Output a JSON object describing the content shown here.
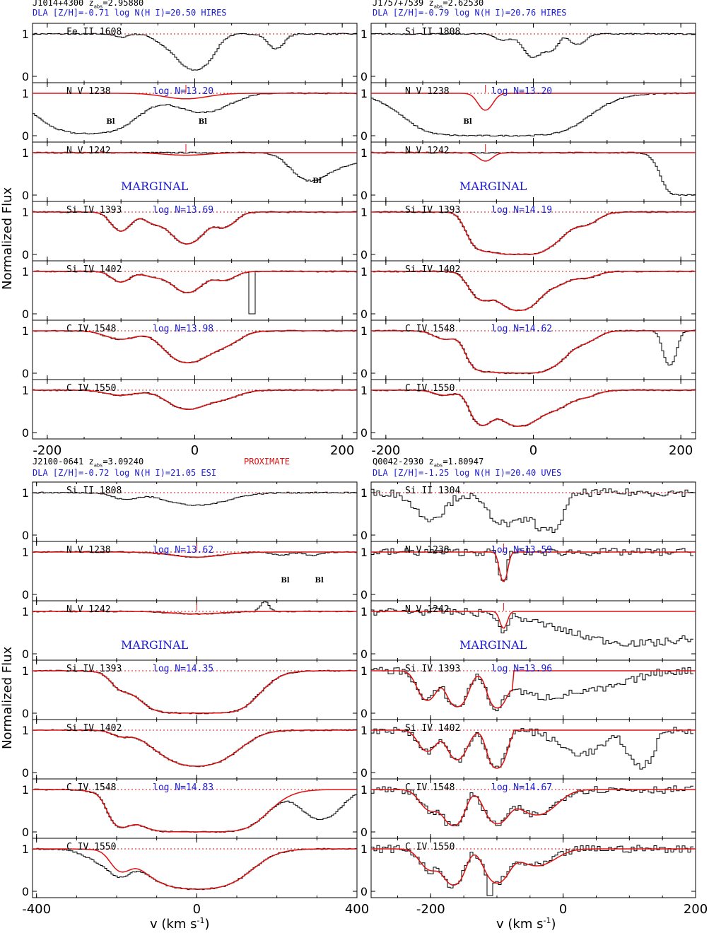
{
  "y_axis_label": "Normalized Flux",
  "x_axis_label": "v (km s",
  "x_axis_label_exponent": "-1",
  "x_axis_label_close": ")",
  "colors": {
    "data": "#000000",
    "model": "#e01010",
    "blue_text": "#1a1ad6",
    "continuum": "#e01010"
  },
  "chart_data": [
    {
      "type": "line",
      "header": {
        "name": "J1014+4300",
        "z_prefix": "z",
        "z_sub": "abs",
        "z_value": "=2.95880",
        "info": "DLA [Z/H]=-0.71 log N(H I)=20.50 HIRES",
        "flag": ""
      },
      "xlim": [
        -220,
        220
      ],
      "ylim": [
        -0.15,
        1.25
      ],
      "xticks": [
        -200,
        0,
        200
      ],
      "yticks": [
        0,
        1
      ],
      "panels": [
        {
          "ion": "Fe II 1608",
          "logN": "",
          "marginal": false,
          "model": false,
          "lines": [
            {
              "v": 0,
              "d": 0.85,
              "w": 18
            },
            {
              "v": -40,
              "d": 0.2,
              "w": 14
            },
            {
              "v": 110,
              "d": 0.35,
              "w": 10
            },
            {
              "v": -100,
              "d": 0.08,
              "w": 8
            }
          ]
        },
        {
          "ion": "N V 1238",
          "logN": "log N=13.20",
          "marginal": false,
          "model": true,
          "model_v": -12,
          "model_d": 0.13,
          "model_w": 28,
          "lines": [
            {
              "v": -145,
              "d": 0.95,
              "w": 42
            },
            {
              "v": 10,
              "d": 0.45,
              "w": 32
            }
          ],
          "blends": [
            {
              "v": -120,
              "label": "Bl"
            },
            {
              "v": 5,
              "label": "Bl"
            }
          ]
        },
        {
          "ion": "N V 1242",
          "logN": "",
          "marginal": true,
          "marginal_label": "MARGINAL",
          "model": true,
          "model_v": -12,
          "model_d": 0.06,
          "model_w": 28,
          "lines": [
            {
              "v": 155,
              "d": 0.62,
              "w": 20
            },
            {
              "v": 200,
              "d": 0.3,
              "w": 30
            }
          ],
          "blends": [
            {
              "v": 160,
              "label": "Bl"
            }
          ]
        },
        {
          "ion": "Si IV 1393",
          "logN": "log N=13.69",
          "marginal": false,
          "model": true,
          "lines": [
            {
              "v": -100,
              "d": 0.45,
              "w": 12
            },
            {
              "v": -10,
              "d": 0.75,
              "w": 18
            },
            {
              "v": 40,
              "d": 0.35,
              "w": 14
            },
            {
              "v": -55,
              "d": 0.25,
              "w": 14
            }
          ]
        },
        {
          "ion": "Si IV 1402",
          "logN": "",
          "marginal": false,
          "model": true,
          "lines": [
            {
              "v": -100,
              "d": 0.25,
              "w": 12
            },
            {
              "v": -10,
              "d": 0.5,
              "w": 18
            },
            {
              "v": 40,
              "d": 0.2,
              "w": 14
            },
            {
              "v": -55,
              "d": 0.12,
              "w": 14
            }
          ],
          "spike": {
            "v": 78,
            "d": 1.0
          }
        },
        {
          "ion": "C IV 1548",
          "logN": "log N=13.98",
          "marginal": false,
          "model": true,
          "lines": [
            {
              "v": -10,
              "d": 0.75,
              "w": 24
            },
            {
              "v": 40,
              "d": 0.3,
              "w": 20
            },
            {
              "v": -100,
              "d": 0.2,
              "w": 20
            }
          ]
        },
        {
          "ion": "C IV 1550",
          "logN": "",
          "marginal": false,
          "model": true,
          "lines": [
            {
              "v": -10,
              "d": 0.45,
              "w": 24
            },
            {
              "v": 40,
              "d": 0.18,
              "w": 20
            },
            {
              "v": -100,
              "d": 0.12,
              "w": 20
            }
          ]
        }
      ]
    },
    {
      "type": "line",
      "header": {
        "name": "J1757+7539",
        "z_prefix": "z",
        "z_sub": "abs",
        "z_value": "=2.62530",
        "info": "DLA [Z/H]=-0.79 log N(H I)=20.76 HIRES",
        "flag": ""
      },
      "xlim": [
        -220,
        220
      ],
      "ylim": [
        -0.15,
        1.25
      ],
      "xticks": [
        -200,
        0,
        200
      ],
      "yticks": [
        0,
        1
      ],
      "panels": [
        {
          "ion": "Si II 1808",
          "logN": "",
          "marginal": false,
          "model": false,
          "lines": [
            {
              "v": 0,
              "d": 0.55,
              "w": 12
            },
            {
              "v": 25,
              "d": 0.35,
              "w": 8
            },
            {
              "v": 60,
              "d": 0.25,
              "w": 10
            },
            {
              "v": -40,
              "d": 0.15,
              "w": 10
            }
          ]
        },
        {
          "ion": "N V 1238",
          "logN": "log N=13.20",
          "marginal": false,
          "model": true,
          "model_v": -65,
          "model_d": 0.4,
          "model_w": 9,
          "lines": [
            {
              "v": -50,
              "d": 1.0,
              "w": 60
            },
            {
              "v": -120,
              "d": 0.3,
              "w": 30
            }
          ],
          "blends": [
            {
              "v": -95,
              "label": "Bl"
            }
          ]
        },
        {
          "ion": "N V 1242",
          "logN": "",
          "marginal": true,
          "marginal_label": "MARGINAL",
          "model": true,
          "model_v": -65,
          "model_d": 0.2,
          "model_w": 9,
          "lines": [
            {
              "v": 210,
              "d": 1.0,
              "w": 18
            }
          ]
        },
        {
          "ion": "Si IV 1393",
          "logN": "log N=14.19",
          "marginal": false,
          "model": true,
          "lines": [
            {
              "v": -70,
              "d": 0.85,
              "w": 14
            },
            {
              "v": -20,
              "d": 1.0,
              "w": 22
            },
            {
              "v": 30,
              "d": 0.55,
              "w": 16
            },
            {
              "v": 70,
              "d": 0.3,
              "w": 16
            }
          ]
        },
        {
          "ion": "Si IV 1402",
          "logN": "",
          "marginal": false,
          "model": true,
          "lines": [
            {
              "v": -70,
              "d": 0.65,
              "w": 14
            },
            {
              "v": -20,
              "d": 0.92,
              "w": 20
            },
            {
              "v": 30,
              "d": 0.3,
              "w": 16
            },
            {
              "v": 70,
              "d": 0.15,
              "w": 16
            }
          ]
        },
        {
          "ion": "C IV 1548",
          "logN": "log N=14.62",
          "marginal": false,
          "model": true,
          "lines": [
            {
              "v": -70,
              "d": 0.9,
              "w": 14
            },
            {
              "v": -20,
              "d": 1.0,
              "w": 24
            },
            {
              "v": 30,
              "d": 0.6,
              "w": 18
            },
            {
              "v": 70,
              "d": 0.25,
              "w": 16
            },
            {
              "v": -120,
              "d": 0.2,
              "w": 14
            }
          ],
          "extra": [
            {
              "v": 185,
              "d": 0.8,
              "w": 7
            }
          ]
        },
        {
          "ion": "C IV 1550",
          "logN": "",
          "marginal": false,
          "model": true,
          "lines": [
            {
              "v": -70,
              "d": 0.8,
              "w": 12
            },
            {
              "v": -20,
              "d": 0.85,
              "w": 22
            },
            {
              "v": 30,
              "d": 0.4,
              "w": 18
            },
            {
              "v": 70,
              "d": 0.15,
              "w": 16
            },
            {
              "v": -120,
              "d": 0.12,
              "w": 14
            }
          ]
        }
      ]
    },
    {
      "type": "line",
      "header": {
        "name": "J2100-0641",
        "z_prefix": "z",
        "z_sub": "abs",
        "z_value": "=3.09240",
        "info": "DLA [Z/H]=-0.72 log N(H I)=21.05 ESI",
        "flag": "PROXIMATE"
      },
      "xlim": [
        -410,
        400
      ],
      "ylim": [
        -0.15,
        1.25
      ],
      "xticks": [
        -400,
        0,
        400
      ],
      "yticks": [
        0,
        1
      ],
      "panels": [
        {
          "ion": "Si II 1808",
          "logN": "",
          "marginal": false,
          "model": false,
          "lines": [
            {
              "v": 0,
              "d": 0.3,
              "w": 70
            },
            {
              "v": -180,
              "d": 0.15,
              "w": 30
            }
          ]
        },
        {
          "ion": "N V 1238",
          "logN": "log N=13.62",
          "marginal": false,
          "model": true,
          "model_v": 0,
          "model_d": 0.12,
          "model_w": 60,
          "lines": [
            {
              "v": 0,
              "d": 0.12,
              "w": 60
            },
            {
              "v": 210,
              "d": 0.08,
              "w": 20
            },
            {
              "v": 290,
              "d": 0.08,
              "w": 20
            }
          ],
          "blends": [
            {
              "v": 210,
              "label": "Bl"
            },
            {
              "v": 295,
              "label": "Bl"
            }
          ]
        },
        {
          "ion": "N V 1242",
          "logN": "",
          "marginal": true,
          "marginal_label": "MARGINAL",
          "model": true,
          "model_v": 0,
          "model_d": 0.06,
          "model_w": 60,
          "lines": [
            {
              "v": 0,
              "d": 0.06,
              "w": 60
            }
          ],
          "emission": [
            {
              "v": 170,
              "h": 0.25,
              "w": 10
            }
          ]
        },
        {
          "ion": "Si IV 1393",
          "logN": "log N=14.35",
          "marginal": false,
          "model": true,
          "lines": [
            {
              "v": 0,
              "d": 1.0,
              "w": 75
            },
            {
              "v": -190,
              "d": 0.3,
              "w": 22
            }
          ]
        },
        {
          "ion": "Si IV 1402",
          "logN": "",
          "marginal": false,
          "model": true,
          "lines": [
            {
              "v": 0,
              "d": 0.85,
              "w": 70
            },
            {
              "v": -190,
              "d": 0.12,
              "w": 22
            }
          ]
        },
        {
          "ion": "C IV 1548",
          "logN": "log N=14.83",
          "marginal": false,
          "model": true,
          "lines": [
            {
              "v": 0,
              "d": 1.0,
              "w": 85
            },
            {
              "v": -190,
              "d": 0.8,
              "w": 22
            }
          ],
          "extra": [
            {
              "v": 310,
              "d": 0.7,
              "w": 40
            }
          ]
        },
        {
          "ion": "C IV 1550",
          "logN": "",
          "marginal": false,
          "model": true,
          "lines": [
            {
              "v": 0,
              "d": 0.95,
              "w": 80
            },
            {
              "v": -190,
              "d": 0.45,
              "w": 22
            }
          ],
          "extra": [
            {
              "v": -220,
              "d": 0.35,
              "w": 45
            }
          ]
        }
      ]
    },
    {
      "type": "line",
      "header": {
        "name": "Q0042-2930",
        "z_prefix": "z",
        "z_sub": "abs",
        "z_value": "=1.80947",
        "info": "DLA [Z/H]=-1.25 log N(H I)=20.40 UVES",
        "flag": ""
      },
      "xlim": [
        -290,
        200
      ],
      "ylim": [
        -0.15,
        1.25
      ],
      "xticks": [
        -200,
        0,
        200
      ],
      "yticks": [
        0,
        1
      ],
      "panels": [
        {
          "ion": "Si II 1304",
          "logN": "",
          "marginal": false,
          "model": false,
          "noisy": true,
          "lines": [
            {
              "v": -200,
              "d": 0.6,
              "w": 20
            },
            {
              "v": -80,
              "d": 0.75,
              "w": 25
            },
            {
              "v": -20,
              "d": 0.9,
              "w": 15
            }
          ]
        },
        {
          "ion": "N V 1238",
          "logN": "log N=13.59",
          "marginal": false,
          "model": true,
          "model_v": -90,
          "model_d": 0.7,
          "model_w": 5,
          "noisy": true,
          "lines": [
            {
              "v": -90,
              "d": 0.7,
              "w": 5
            }
          ]
        },
        {
          "ion": "N V 1242",
          "logN": "",
          "marginal": true,
          "marginal_label": "MARGINAL",
          "model": true,
          "model_v": -90,
          "model_d": 0.4,
          "model_w": 5,
          "noisy": true,
          "lines": [
            {
              "v": -90,
              "d": 0.5,
              "w": 5
            },
            {
              "v": 120,
              "d": 0.75,
              "w": 90
            }
          ]
        },
        {
          "ion": "Si IV 1393",
          "logN": "log N=13.96",
          "marginal": false,
          "model": true,
          "noisy": true,
          "model_cut": -90,
          "lines": [
            {
              "v": -205,
              "d": 0.7,
              "w": 12
            },
            {
              "v": -160,
              "d": 0.85,
              "w": 12
            },
            {
              "v": -100,
              "d": 0.85,
              "w": 10
            },
            {
              "v": -30,
              "d": 0.6,
              "w": 40
            },
            {
              "v": 60,
              "d": 0.4,
              "w": 40
            }
          ]
        },
        {
          "ion": "Si IV 1402",
          "logN": "",
          "marginal": false,
          "model": true,
          "noisy": true,
          "model_cut": -90,
          "lines": [
            {
              "v": -205,
              "d": 0.5,
              "w": 12
            },
            {
              "v": -160,
              "d": 0.7,
              "w": 12
            },
            {
              "v": -100,
              "d": 0.9,
              "w": 10
            },
            {
              "v": 30,
              "d": 0.55,
              "w": 30
            },
            {
              "v": 120,
              "d": 0.85,
              "w": 14
            }
          ]
        },
        {
          "ion": "C IV 1548",
          "logN": "log N=14.67",
          "marginal": false,
          "model": true,
          "noisy": true,
          "lines": [
            {
              "v": -200,
              "d": 0.5,
              "w": 14
            },
            {
              "v": -165,
              "d": 0.85,
              "w": 12
            },
            {
              "v": -100,
              "d": 0.8,
              "w": 14
            },
            {
              "v": -40,
              "d": 0.6,
              "w": 25
            }
          ]
        },
        {
          "ion": "C IV 1550",
          "logN": "",
          "marginal": false,
          "model": true,
          "noisy": true,
          "lines": [
            {
              "v": -200,
              "d": 0.5,
              "w": 14
            },
            {
              "v": -165,
              "d": 0.85,
              "w": 12
            },
            {
              "v": -100,
              "d": 0.8,
              "w": 14
            },
            {
              "v": -40,
              "d": 0.4,
              "w": 25
            }
          ],
          "spike": {
            "v": -110,
            "d": 1.1
          }
        }
      ]
    }
  ]
}
